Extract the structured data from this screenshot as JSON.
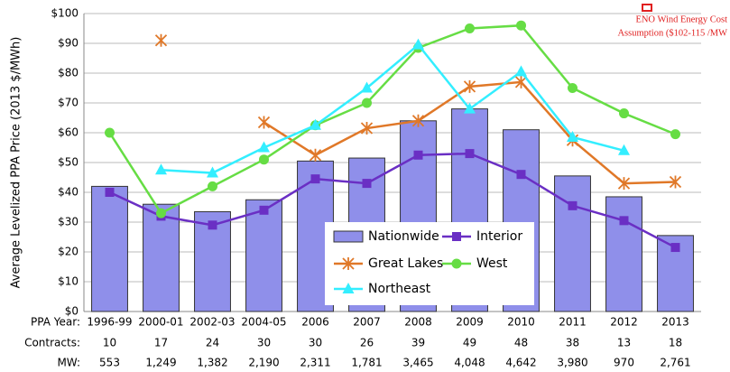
{
  "chart_data": {
    "type": "bar-line",
    "y_label": "Average Levelized PPA Price (2013 $/MWh)",
    "x_label": "PPA Year:",
    "categories": [
      "1996-99",
      "2000-01",
      "2002-03",
      "2004-05",
      "2006",
      "2007",
      "2008",
      "2009",
      "2010",
      "2011",
      "2012",
      "2013"
    ],
    "ylim": [
      0,
      100
    ],
    "yticks": [
      {
        "value": 0,
        "label": "$0"
      },
      {
        "value": 10,
        "label": "$10"
      },
      {
        "value": 20,
        "label": "$20"
      },
      {
        "value": 30,
        "label": "$30"
      },
      {
        "value": 40,
        "label": "$40"
      },
      {
        "value": 50,
        "label": "$50"
      },
      {
        "value": 60,
        "label": "$60"
      },
      {
        "value": 70,
        "label": "$70"
      },
      {
        "value": 80,
        "label": "$80"
      },
      {
        "value": 90,
        "label": "$90"
      },
      {
        "value": 100,
        "label": "$100"
      }
    ],
    "grid": true,
    "series": [
      {
        "name": "Nationwide",
        "kind": "bar",
        "color": "#8f8fea",
        "values": [
          42,
          36,
          33.5,
          37.5,
          50.5,
          51.5,
          64,
          68,
          61,
          45.5,
          38.5,
          25.5
        ]
      },
      {
        "name": "Interior",
        "kind": "line",
        "marker": "square",
        "color": "#6a2fc4",
        "values": [
          40,
          32,
          29,
          34,
          44.5,
          43,
          52.5,
          53,
          46,
          35.5,
          30.5,
          21.5
        ]
      },
      {
        "name": "Great Lakes",
        "kind": "line",
        "marker": "star",
        "color": "#e07828",
        "values": [
          null,
          91,
          null,
          63.5,
          52.5,
          61.5,
          64,
          75.5,
          77,
          57.5,
          43,
          43.5
        ]
      },
      {
        "name": "West",
        "kind": "line",
        "marker": "circle",
        "color": "#66dd44",
        "values": [
          60,
          33,
          42,
          51,
          62.5,
          70,
          88.5,
          95,
          96,
          75,
          66.5,
          59.5
        ]
      },
      {
        "name": "Northeast",
        "kind": "line",
        "marker": "triangle",
        "color": "#33eeff",
        "values": [
          null,
          47.5,
          46.5,
          55,
          62.5,
          75,
          89.5,
          68,
          80.5,
          58.5,
          54,
          null
        ]
      }
    ],
    "rows": [
      {
        "label": "Contracts:",
        "values": [
          10,
          17,
          24,
          30,
          30,
          26,
          39,
          49,
          48,
          38,
          13,
          18
        ]
      },
      {
        "label": "MW:",
        "values": [
          "553",
          "1,249",
          "1,382",
          "2,190",
          "2,311",
          "1,781",
          "3,465",
          "4,048",
          "4,642",
          "3,980",
          "970",
          "2,761"
        ]
      }
    ],
    "annotation": [
      "ENO Wind Energy Cost",
      "Assumption ($102-115 /MW"
    ]
  }
}
